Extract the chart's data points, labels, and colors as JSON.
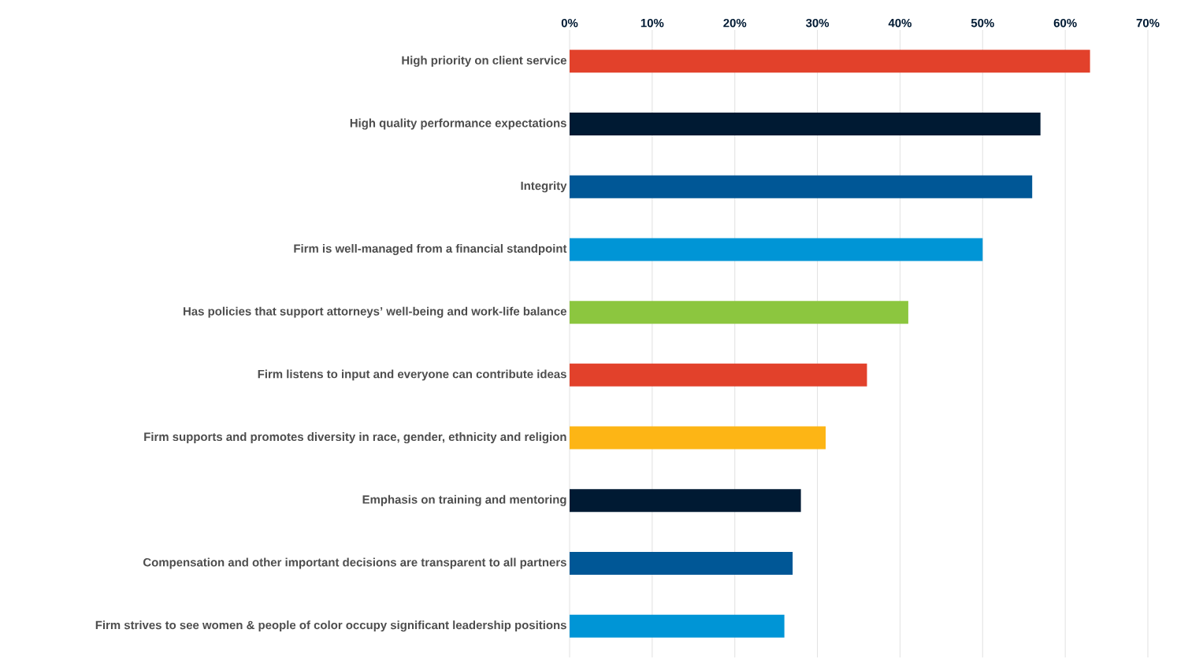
{
  "chart_data": {
    "type": "bar",
    "orientation": "horizontal",
    "grid": "x",
    "categories": [
      "High priority on client service",
      "High quality performance expectations",
      "Integrity",
      "Firm is well-managed from a financial standpoint",
      "Has policies that support attorneys’ well-being and work-life balance",
      "Firm listens to input and everyone can contribute ideas",
      "Firm supports and promotes diversity in race, gender, ethnicity and religion",
      "Emphasis on training and mentoring",
      "Compensation and other important decisions are transparent to all partners",
      "Firm strives to see women & people of color occupy significant leadership positions"
    ],
    "values": [
      63,
      57,
      56,
      50,
      41,
      36,
      31,
      28,
      27,
      26
    ],
    "colors": [
      "#e2412b",
      "#001a33",
      "#005796",
      "#0095d6",
      "#8cc63f",
      "#e2412b",
      "#fdb515",
      "#001a33",
      "#005796",
      "#0095d6"
    ],
    "xlim": [
      0,
      70
    ],
    "xticks": [
      {
        "value": 0,
        "label": "0%"
      },
      {
        "value": 10,
        "label": "10%"
      },
      {
        "value": 20,
        "label": "20%"
      },
      {
        "value": 30,
        "label": "30%"
      },
      {
        "value": 40,
        "label": "40%"
      },
      {
        "value": 50,
        "label": "50%"
      },
      {
        "value": 60,
        "label": "60%"
      },
      {
        "value": 70,
        "label": "70%"
      }
    ]
  }
}
